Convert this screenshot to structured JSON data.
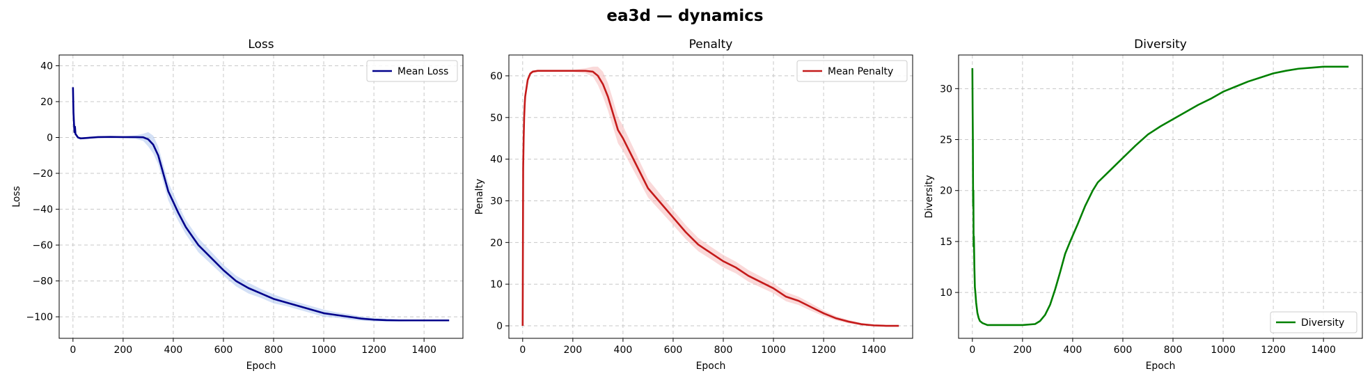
{
  "figure": {
    "suptitle": "ea3d — dynamics"
  },
  "colors": {
    "loss": "#00008b",
    "loss_band": "#aec6ee",
    "penalty": "#c41a1a",
    "penalty_band": "#f6b9b9",
    "diversity": "#008000"
  },
  "chart_data": [
    {
      "type": "line",
      "title": "Loss",
      "xlabel": "Epoch",
      "ylabel": "Loss",
      "xlim": [
        -55,
        1555
      ],
      "ylim": [
        -112,
        46
      ],
      "xticks": [
        0,
        200,
        400,
        600,
        800,
        1000,
        1200,
        1400
      ],
      "yticks": [
        40,
        20,
        0,
        -20,
        -40,
        -60,
        -80,
        -100
      ],
      "grid": true,
      "legend": {
        "position": "top-right",
        "entries": [
          "Mean Loss"
        ]
      },
      "series": [
        {
          "name": "Mean Loss",
          "color": "loss",
          "band": "loss_band",
          "x": [
            0,
            2,
            4,
            6,
            8,
            10,
            15,
            20,
            30,
            50,
            100,
            150,
            200,
            250,
            280,
            300,
            320,
            340,
            360,
            380,
            400,
            420,
            450,
            480,
            500,
            550,
            600,
            650,
            700,
            750,
            800,
            850,
            900,
            950,
            1000,
            1050,
            1100,
            1150,
            1200,
            1250,
            1300,
            1350,
            1400,
            1450,
            1500
          ],
          "y": [
            28,
            14,
            8,
            3,
            6,
            2,
            1,
            0,
            -0.5,
            -0.3,
            0.2,
            0.3,
            0.2,
            0.2,
            0.1,
            -1,
            -4,
            -10,
            -20,
            -30,
            -36,
            -42,
            -50,
            -56,
            -60,
            -67,
            -74,
            -80,
            -84,
            -87,
            -90,
            -92,
            -94,
            -96,
            -98,
            -99,
            -100,
            -101,
            -101.6,
            -101.9,
            -102,
            -102,
            -102,
            -102,
            -102
          ],
          "spread": [
            8,
            4,
            3,
            2,
            2,
            1,
            1,
            0.5,
            0.5,
            0.5,
            0.5,
            0.5,
            0.5,
            1,
            2,
            4,
            5,
            5,
            5,
            5,
            5,
            4.5,
            4,
            4,
            4,
            3.5,
            3,
            3,
            3,
            2.5,
            2.5,
            2,
            2,
            2,
            2,
            1.5,
            1.5,
            1.2,
            1,
            0.8,
            0.6,
            0.5,
            0.4,
            0.3,
            0.3
          ]
        }
      ]
    },
    {
      "type": "line",
      "title": "Penalty",
      "xlabel": "Epoch",
      "ylabel": "Penalty",
      "xlim": [
        -55,
        1555
      ],
      "ylim": [
        -3,
        65
      ],
      "xticks": [
        0,
        200,
        400,
        600,
        800,
        1000,
        1200,
        1400
      ],
      "yticks": [
        60,
        50,
        40,
        30,
        20,
        10,
        0
      ],
      "grid": true,
      "legend": {
        "position": "top-right",
        "entries": [
          "Mean Penalty"
        ]
      },
      "series": [
        {
          "name": "Mean Penalty",
          "color": "penalty",
          "band": "penalty_band",
          "x": [
            0,
            2,
            4,
            6,
            8,
            10,
            15,
            20,
            30,
            40,
            60,
            100,
            200,
            250,
            280,
            300,
            320,
            340,
            360,
            380,
            400,
            450,
            500,
            550,
            600,
            650,
            700,
            750,
            800,
            850,
            900,
            950,
            1000,
            1050,
            1100,
            1150,
            1200,
            1250,
            1300,
            1350,
            1400,
            1450,
            1500
          ],
          "y": [
            0,
            38,
            45,
            50,
            53,
            55,
            57,
            59,
            60.5,
            61,
            61.2,
            61.2,
            61.2,
            61.2,
            61,
            60,
            58,
            55,
            51,
            47,
            45,
            39,
            33,
            29.5,
            26,
            22.5,
            19.5,
            17.5,
            15.5,
            14,
            12,
            10.5,
            9,
            7,
            6,
            4.5,
            3,
            1.8,
            1,
            0.4,
            0.1,
            0,
            0
          ],
          "spread": [
            0,
            2,
            2,
            2,
            1.5,
            1.2,
            1,
            0.8,
            0.5,
            0.3,
            0.3,
            0.3,
            0.3,
            0.6,
            1.2,
            2.2,
            3,
            3.3,
            3.3,
            3.2,
            3,
            2.6,
            2.2,
            2,
            1.8,
            1.7,
            1.6,
            1.5,
            1.5,
            1.4,
            1.4,
            1.3,
            1.2,
            1.1,
            1,
            0.9,
            0.7,
            0.5,
            0.4,
            0.3,
            0.1,
            0,
            0
          ]
        }
      ]
    },
    {
      "type": "line",
      "title": "Diversity",
      "xlabel": "Epoch",
      "ylabel": "Diversity",
      "xlim": [
        -55,
        1555
      ],
      "ylim": [
        5.5,
        33.3
      ],
      "xticks": [
        0,
        200,
        400,
        600,
        800,
        1000,
        1200,
        1400
      ],
      "yticks": [
        30,
        25,
        20,
        15,
        10
      ],
      "grid": true,
      "legend": {
        "position": "bottom-right",
        "entries": [
          "Diversity"
        ]
      },
      "series": [
        {
          "name": "Diversity",
          "color": "diversity",
          "x": [
            0,
            1,
            2,
            3,
            4,
            5,
            6,
            8,
            10,
            12,
            15,
            20,
            25,
            30,
            40,
            60,
            100,
            150,
            200,
            250,
            270,
            290,
            310,
            330,
            350,
            370,
            390,
            420,
            450,
            480,
            500,
            550,
            600,
            650,
            700,
            750,
            800,
            850,
            900,
            950,
            1000,
            1050,
            1100,
            1150,
            1200,
            1250,
            1300,
            1350,
            1400,
            1450,
            1500
          ],
          "y": [
            32,
            28,
            25,
            18.5,
            20,
            14.5,
            15.5,
            12.5,
            10.5,
            10,
            9,
            8,
            7.5,
            7.2,
            7,
            6.8,
            6.8,
            6.8,
            6.8,
            6.9,
            7.2,
            7.8,
            8.8,
            10.3,
            12,
            13.8,
            15,
            16.7,
            18.5,
            20,
            20.8,
            22,
            23.2,
            24.4,
            25.5,
            26.3,
            27,
            27.7,
            28.4,
            29,
            29.7,
            30.2,
            30.7,
            31.1,
            31.5,
            31.75,
            31.95,
            32.05,
            32.15,
            32.15,
            32.15
          ]
        }
      ]
    }
  ]
}
